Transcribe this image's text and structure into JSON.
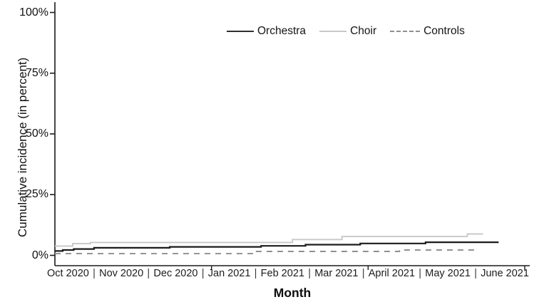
{
  "figure": {
    "type": "survival-step-plot",
    "background": "#ffffff",
    "axis_color": "#1a1a1a"
  },
  "legend": {
    "position": "top-center-inside",
    "items": [
      {
        "label": "Orchestra",
        "color": "#2f2f2f",
        "style": "solid"
      },
      {
        "label": "Choir",
        "color": "#c8c8c8",
        "style": "solid"
      },
      {
        "label": "Controls",
        "color": "#8f8f8f",
        "style": "dashed"
      }
    ]
  },
  "chart_data": {
    "type": "line",
    "subtype": "step-after",
    "title": "",
    "xlabel": "Month",
    "ylabel": "Cumulative incidence (in percent)",
    "x_unit": "months since start of Oct 2020",
    "xlim": [
      0,
      9
    ],
    "ylim": [
      0,
      100
    ],
    "grid": false,
    "y_ticks": [
      {
        "value": 100,
        "label": "100%"
      },
      {
        "value": 75,
        "label": "75%"
      },
      {
        "value": 50,
        "label": "50%"
      },
      {
        "value": 25,
        "label": "25%"
      },
      {
        "value": 0,
        "label": "0%"
      }
    ],
    "x_tick_labels": [
      "Oct 2020",
      "Nov 2020",
      "Dec 2020",
      "Jan 2021",
      "Feb 2021",
      "Mar 2021",
      "April 2021",
      "May 2021",
      "June 2021"
    ],
    "x_label_separator": "|",
    "x_minor_ticks_months": [
      3,
      6,
      9
    ],
    "series": [
      {
        "name": "Orchestra",
        "color": "#1b1b1b",
        "style": "solid",
        "width": 2.2,
        "points_pct": [
          [
            0,
            1.8
          ],
          [
            0.15,
            2.2
          ],
          [
            0.36,
            2.6
          ],
          [
            0.75,
            3.1
          ],
          [
            2.2,
            3.5
          ],
          [
            3.95,
            3.9
          ],
          [
            4.8,
            4.4
          ],
          [
            5.85,
            4.9
          ],
          [
            7.1,
            5.4
          ]
        ],
        "end_x": 8.5,
        "final_value_pct": 5.4
      },
      {
        "name": "Choir",
        "color": "#c8c8c8",
        "style": "solid",
        "width": 1.9,
        "points_pct": [
          [
            0,
            3.8
          ],
          [
            0.34,
            4.8
          ],
          [
            0.68,
            5.3
          ],
          [
            4.55,
            6.5
          ],
          [
            5.5,
            7.8
          ],
          [
            7.9,
            8.8
          ]
        ],
        "end_x": 8.2,
        "final_value_pct": 8.8
      },
      {
        "name": "Controls",
        "color": "#8f8f8f",
        "style": "dashed",
        "width": 1.9,
        "dash": [
          8,
          7
        ],
        "points_pct": [
          [
            0,
            0.7
          ],
          [
            3.8,
            1.6
          ],
          [
            6.6,
            2.2
          ]
        ],
        "end_x": 8.1,
        "final_value_pct": 2.2
      }
    ]
  }
}
